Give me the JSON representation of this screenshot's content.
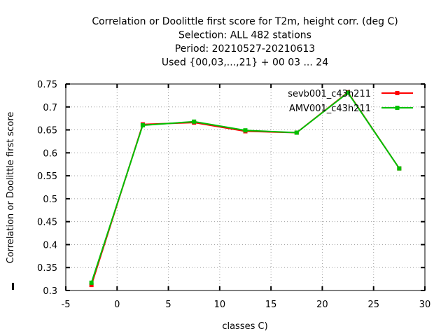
{
  "chart_data": {
    "type": "line",
    "title_lines": [
      "Correlation or Doolittle first score  for T2m, height corr. (deg C)",
      "Selection: ALL    482 stations",
      "Period: 20210527-20210613",
      "Used {00,03,...,21} + 00 03 ... 24"
    ],
    "xlabel": "classes C)",
    "ylabel": "Correlation or Doolittle first score",
    "xlim": [
      -5,
      30
    ],
    "ylim": [
      0.3,
      0.75
    ],
    "xticks": [
      -5,
      0,
      5,
      10,
      15,
      20,
      25,
      30
    ],
    "yticks": [
      0.3,
      0.35,
      0.4,
      0.45,
      0.5,
      0.55,
      0.6,
      0.65,
      0.7,
      0.75
    ],
    "grid": true,
    "legend_position": "top-right",
    "series": [
      {
        "name": "sevb001_c43h211",
        "color": "#ff0000",
        "x": [
          -2.5,
          2.5,
          7.5,
          12.5,
          17.5,
          22.5,
          27.5
        ],
        "y": [
          0.312,
          0.662,
          0.666,
          0.647,
          0.644,
          0.732,
          0.566
        ]
      },
      {
        "name": "AMV001_c43h211",
        "color": "#00c000",
        "x": [
          -2.5,
          2.5,
          7.5,
          12.5,
          17.5,
          22.5,
          27.5
        ],
        "y": [
          0.317,
          0.66,
          0.668,
          0.649,
          0.644,
          0.731,
          0.566
        ]
      }
    ]
  }
}
